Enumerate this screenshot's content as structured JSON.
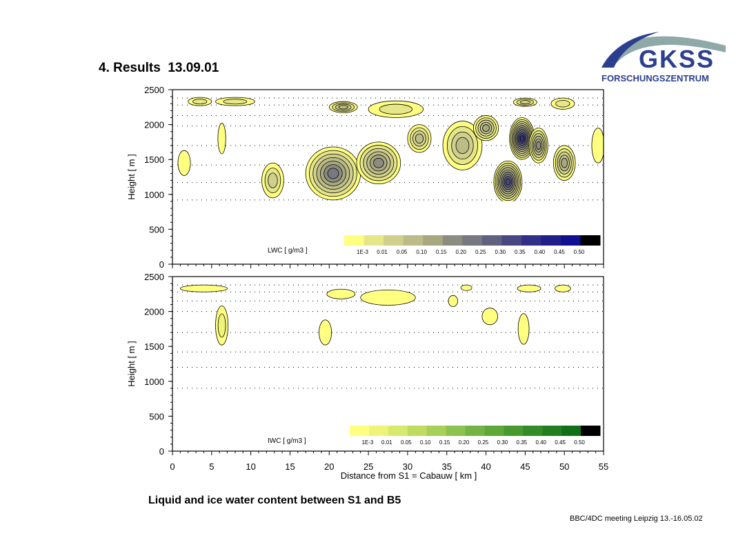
{
  "header": {
    "title": "4. Results  13.09.01"
  },
  "logo": {
    "text": "GKSS",
    "subtitle": "FORSCHUNGSZENTRUM",
    "color": "#2c3f8f",
    "arc_color": "#8fa8a8"
  },
  "caption": "Liquid and ice water content between S1 and B5",
  "footer": "BBC/4DC meeting Leipzig 13.-16.05.02",
  "chart_data": [
    {
      "type": "heatmap",
      "ylabel": "Height [ m ]",
      "xlabel": "",
      "xlim": [
        0,
        55
      ],
      "ylim": [
        0,
        2500
      ],
      "y_ticks": [
        0,
        500,
        1000,
        1500,
        2000,
        2500
      ],
      "x_ticks": [
        0,
        5,
        10,
        15,
        20,
        25,
        30,
        35,
        40,
        45,
        50,
        55
      ],
      "grid_dotted_heights": [
        2380,
        2280,
        2130,
        1980,
        1700,
        1420,
        1170,
        920
      ],
      "colorbar": {
        "label": "LWC [ g/m3 ]",
        "levels": [
          "1E-3",
          "0.01",
          "0.05",
          "0.10",
          "0.15",
          "0.20",
          "0.25",
          "0.30",
          "0.35",
          "0.40",
          "0.45",
          "0.50"
        ],
        "colors": [
          "#ffff80",
          "#e6e68a",
          "#d0d08c",
          "#bcbc88",
          "#a8a880",
          "#8c8c80",
          "#787880",
          "#606080",
          "#484880",
          "#303088",
          "#202088",
          "#101090",
          "#000000"
        ]
      },
      "features": [
        {
          "x": 20.5,
          "y": 1300,
          "rx": 3.5,
          "ry": 380,
          "level": 6
        },
        {
          "x": 26.3,
          "y": 1450,
          "rx": 2.8,
          "ry": 300,
          "level": 5
        },
        {
          "x": 31.5,
          "y": 1800,
          "rx": 1.5,
          "ry": 200,
          "level": 3
        },
        {
          "x": 37.0,
          "y": 1700,
          "rx": 2.5,
          "ry": 350,
          "level": 3
        },
        {
          "x": 40.0,
          "y": 1950,
          "rx": 1.6,
          "ry": 180,
          "level": 4
        },
        {
          "x": 44.6,
          "y": 1800,
          "rx": 1.6,
          "ry": 300,
          "level": 9
        },
        {
          "x": 46.7,
          "y": 1700,
          "rx": 1.2,
          "ry": 250,
          "level": 5
        },
        {
          "x": 42.8,
          "y": 1180,
          "rx": 1.8,
          "ry": 300,
          "level": 8
        },
        {
          "x": 50.0,
          "y": 1450,
          "rx": 1.4,
          "ry": 250,
          "level": 4
        },
        {
          "x": 21.8,
          "y": 2250,
          "rx": 1.8,
          "ry": 80,
          "level": 3
        },
        {
          "x": 28.5,
          "y": 2220,
          "rx": 3.5,
          "ry": 120,
          "level": 1
        },
        {
          "x": 12.8,
          "y": 1200,
          "rx": 1.4,
          "ry": 250,
          "level": 2
        },
        {
          "x": 6.3,
          "y": 1800,
          "rx": 0.5,
          "ry": 220,
          "level": 0
        },
        {
          "x": 1.5,
          "y": 1450,
          "rx": 0.8,
          "ry": 180,
          "level": 0
        },
        {
          "x": 54.3,
          "y": 1700,
          "rx": 0.8,
          "ry": 250,
          "level": 0
        },
        {
          "x": 3.5,
          "y": 2330,
          "rx": 1.5,
          "ry": 60,
          "level": 1
        },
        {
          "x": 8.0,
          "y": 2330,
          "rx": 2.5,
          "ry": 60,
          "level": 1
        },
        {
          "x": 45.0,
          "y": 2320,
          "rx": 1.5,
          "ry": 60,
          "level": 2
        },
        {
          "x": 49.8,
          "y": 2300,
          "rx": 1.5,
          "ry": 80,
          "level": 1
        }
      ]
    },
    {
      "type": "heatmap",
      "ylabel": "Height [ m ]",
      "xlabel": "Distance from S1 = Cabauw [ km ]",
      "xlim": [
        0,
        55
      ],
      "ylim": [
        0,
        2500
      ],
      "y_ticks": [
        0,
        500,
        1000,
        1500,
        2000,
        2500
      ],
      "x_ticks": [
        0,
        5,
        10,
        15,
        20,
        25,
        30,
        35,
        40,
        45,
        50,
        55
      ],
      "grid_dotted_heights": [
        2380,
        2280,
        2150,
        2000,
        1700,
        1420,
        1200,
        900
      ],
      "colorbar": {
        "label": "IWC [ g/m3 ]",
        "levels": [
          "1E-3",
          "0.01",
          "0.05",
          "0.10",
          "0.15",
          "0.20",
          "0.25",
          "0.30",
          "0.35",
          "0.40",
          "0.45",
          "0.50"
        ],
        "colors": [
          "#ffff80",
          "#eef47a",
          "#d8ea6e",
          "#c0dc60",
          "#a6d058",
          "#8cc250",
          "#74b444",
          "#5ea83a",
          "#489a30",
          "#348c28",
          "#227e20",
          "#107018",
          "#000000"
        ]
      },
      "features": [
        {
          "x": 6.3,
          "y": 1800,
          "rx": 0.8,
          "ry": 280,
          "level": 1
        },
        {
          "x": 19.5,
          "y": 1700,
          "rx": 0.8,
          "ry": 180,
          "level": 0
        },
        {
          "x": 21.5,
          "y": 2250,
          "rx": 1.8,
          "ry": 70,
          "level": 0
        },
        {
          "x": 27.5,
          "y": 2200,
          "rx": 3.5,
          "ry": 110,
          "level": 0
        },
        {
          "x": 40.5,
          "y": 1930,
          "rx": 1.0,
          "ry": 120,
          "level": 0
        },
        {
          "x": 44.8,
          "y": 1750,
          "rx": 0.7,
          "ry": 220,
          "level": 0
        },
        {
          "x": 35.8,
          "y": 2150,
          "rx": 0.6,
          "ry": 80,
          "level": 0
        },
        {
          "x": 4.0,
          "y": 2330,
          "rx": 3.0,
          "ry": 50,
          "level": 0
        },
        {
          "x": 45.5,
          "y": 2330,
          "rx": 1.5,
          "ry": 50,
          "level": 0
        },
        {
          "x": 49.8,
          "y": 2330,
          "rx": 1.0,
          "ry": 50,
          "level": 0
        },
        {
          "x": 37.5,
          "y": 2340,
          "rx": 0.7,
          "ry": 40,
          "level": 0
        }
      ]
    }
  ]
}
